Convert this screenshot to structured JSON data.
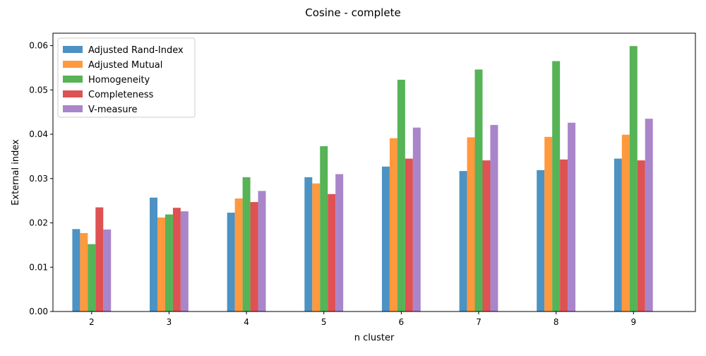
{
  "chart_data": {
    "type": "bar",
    "title": "Cosine - complete",
    "xlabel": "n cluster",
    "ylabel": "External index",
    "categories": [
      "2",
      "3",
      "4",
      "5",
      "6",
      "7",
      "8",
      "9"
    ],
    "ylim": [
      0,
      0.0628
    ],
    "yticks": [
      "0.00",
      "0.01",
      "0.02",
      "0.03",
      "0.04",
      "0.05",
      "0.06"
    ],
    "legend_position": "top-left",
    "grid": false,
    "series": [
      {
        "name": "Adjusted Rand-Index",
        "color": "#1f77b4",
        "values": [
          0.0186,
          0.0257,
          0.0223,
          0.0303,
          0.0327,
          0.0317,
          0.0319,
          0.0345
        ]
      },
      {
        "name": "Adjusted Mutual",
        "color": "#ff7f0e",
        "values": [
          0.0177,
          0.0212,
          0.0255,
          0.0289,
          0.0391,
          0.0393,
          0.0394,
          0.0399
        ]
      },
      {
        "name": "Homogeneity",
        "color": "#2ca02c",
        "values": [
          0.0152,
          0.0219,
          0.0303,
          0.0373,
          0.0523,
          0.0546,
          0.0565,
          0.0599
        ]
      },
      {
        "name": "Completeness",
        "color": "#d62728",
        "values": [
          0.0235,
          0.0234,
          0.0247,
          0.0265,
          0.0345,
          0.0341,
          0.0343,
          0.0341
        ]
      },
      {
        "name": "V-measure",
        "color": "#9467bd",
        "values": [
          0.0185,
          0.0226,
          0.0272,
          0.031,
          0.0415,
          0.0421,
          0.0426,
          0.0435
        ]
      }
    ]
  }
}
